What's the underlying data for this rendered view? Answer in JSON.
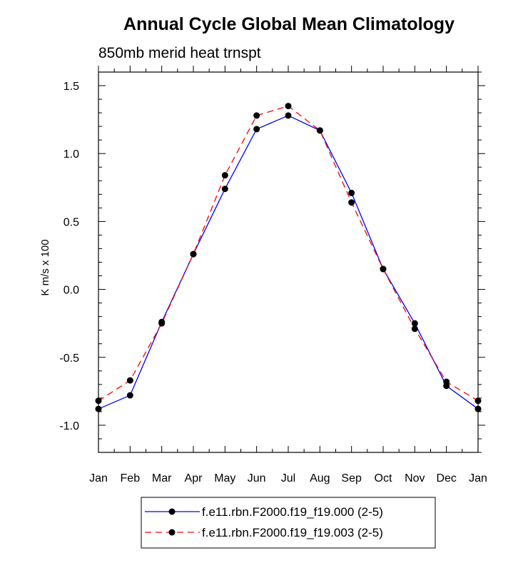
{
  "chart_data": {
    "type": "line",
    "title": "Annual Cycle Global Mean Climatology",
    "subtitle": "850mb merid heat trnspt",
    "ylabel": "K m/s x 100",
    "xlabel": "",
    "ylim": [
      -1.2,
      1.6
    ],
    "y_ticks": [
      -1.0,
      -0.5,
      0.0,
      0.5,
      1.0,
      1.5
    ],
    "y_tick_labels": [
      "-1.0",
      "-0.5",
      "0.0",
      "0.5",
      "1.0",
      "1.5"
    ],
    "categories": [
      "Jan",
      "Feb",
      "Mar",
      "Apr",
      "May",
      "Jun",
      "Jul",
      "Aug",
      "Sep",
      "Oct",
      "Nov",
      "Dec",
      "Jan"
    ],
    "grid": false,
    "legend_position": "bottom",
    "series": [
      {
        "name": "f.e11.rbn.F2000.f19_f19.000 (2-5)",
        "color": "#0000ff",
        "line_style": "solid",
        "values": [
          -0.88,
          -0.78,
          -0.24,
          0.26,
          0.74,
          1.18,
          1.28,
          1.17,
          0.71,
          0.15,
          -0.25,
          -0.71,
          -0.88
        ]
      },
      {
        "name": "f.e11.rbn.F2000.f19_f19.003 (2-5)",
        "color": "#ff0000",
        "line_style": "dashed",
        "values": [
          -0.82,
          -0.67,
          -0.25,
          0.26,
          0.84,
          1.28,
          1.35,
          1.17,
          0.64,
          0.15,
          -0.29,
          -0.68,
          -0.82
        ]
      }
    ]
  }
}
